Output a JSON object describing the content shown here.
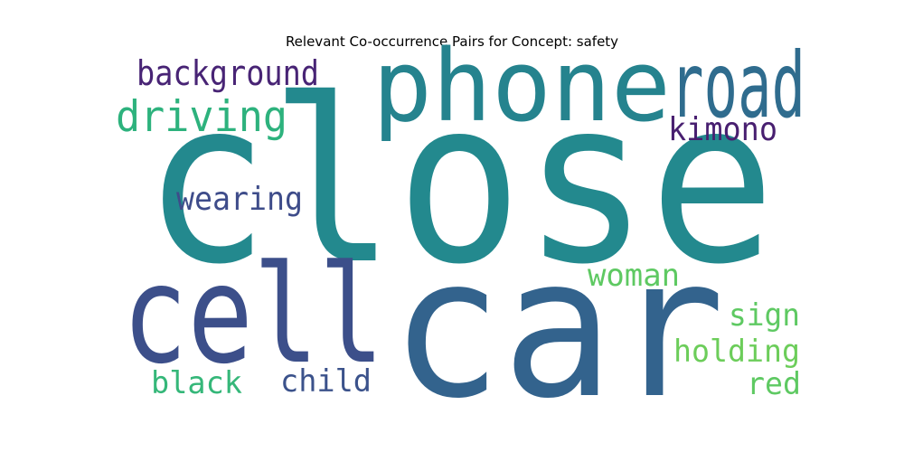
{
  "chart_data": {
    "type": "wordcloud",
    "title": "Relevant Co-occurrence Pairs for Concept: safety",
    "words": [
      {
        "text": "close",
        "weight": 1.0,
        "color": "#23898e"
      },
      {
        "text": "car",
        "weight": 0.88,
        "color": "#33638d"
      },
      {
        "text": "cell",
        "weight": 0.62,
        "color": "#3c4f8a"
      },
      {
        "text": "phone",
        "weight": 0.48,
        "color": "#25838e"
      },
      {
        "text": "road",
        "weight": 0.44,
        "color": "#2f6c8e"
      },
      {
        "text": "driving",
        "weight": 0.24,
        "color": "#2db27d"
      },
      {
        "text": "background",
        "weight": 0.19,
        "color": "#482475"
      },
      {
        "text": "wearing",
        "weight": 0.17,
        "color": "#3e4c8a"
      },
      {
        "text": "kimono",
        "weight": 0.15,
        "color": "#481f70"
      },
      {
        "text": "woman",
        "weight": 0.15,
        "color": "#5ec962"
      },
      {
        "text": "sign",
        "weight": 0.15,
        "color": "#5ec962"
      },
      {
        "text": "holding",
        "weight": 0.15,
        "color": "#6ccd5a"
      },
      {
        "text": "black",
        "weight": 0.15,
        "color": "#35b779"
      },
      {
        "text": "child",
        "weight": 0.15,
        "color": "#3b528b"
      },
      {
        "text": "red",
        "weight": 0.15,
        "color": "#5ec962"
      }
    ]
  }
}
